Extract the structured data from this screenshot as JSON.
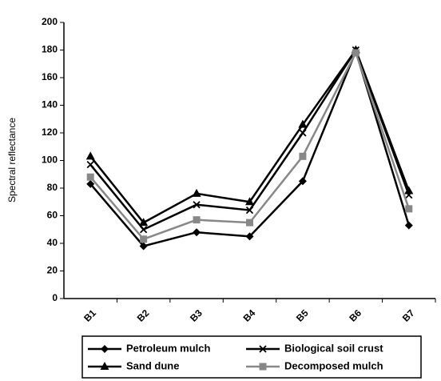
{
  "chart_data": {
    "type": "line",
    "y_label": "Spectral reflectance",
    "categories": [
      "B1",
      "B2",
      "B3",
      "B4",
      "B5",
      "B6",
      "B7"
    ],
    "series": [
      {
        "name": "Petroleum mulch",
        "color": "#000000",
        "marker": "diamond",
        "values": [
          83,
          38,
          48,
          45,
          85,
          179,
          53
        ]
      },
      {
        "name": "Biological soil crust",
        "color": "#000000",
        "marker": "x",
        "values": [
          97,
          50,
          68,
          64,
          120,
          180,
          75
        ]
      },
      {
        "name": "Sand dune",
        "color": "#000000",
        "marker": "triangle",
        "values": [
          103,
          55,
          76,
          70,
          126,
          180,
          78
        ]
      },
      {
        "name": "Decomposed mulch",
        "color": "#888888",
        "marker": "square",
        "values": [
          88,
          43,
          57,
          55,
          103,
          178,
          65
        ]
      }
    ],
    "ylim": [
      0,
      200
    ],
    "yticks": [
      0,
      20,
      40,
      60,
      80,
      100,
      120,
      140,
      160,
      180,
      200
    ]
  }
}
